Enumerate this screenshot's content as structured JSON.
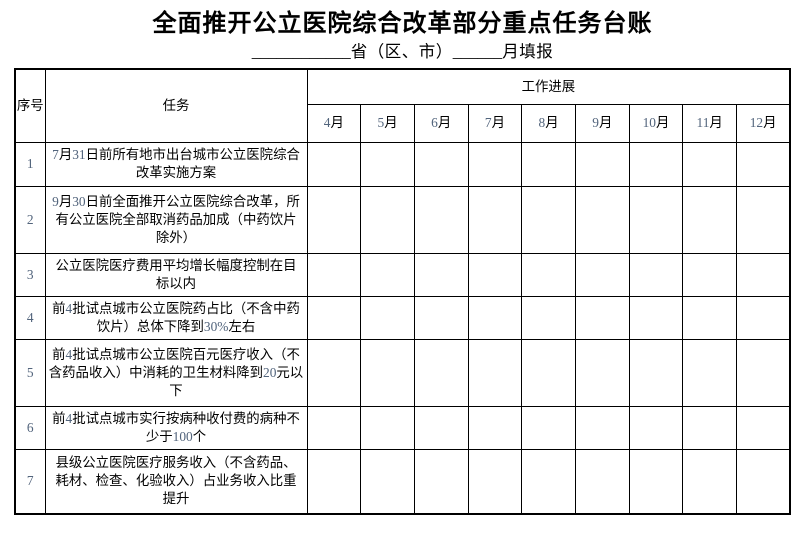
{
  "title": "全面推开公立医院综合改革部分重点任务台账",
  "subtitle": {
    "blank_province": "____________",
    "province_label": "省（区、市）",
    "blank_month": "______",
    "month_label": "月填报"
  },
  "table": {
    "headers": {
      "index": "序号",
      "task": "任务",
      "progress": "工作进展"
    },
    "months": [
      "4月",
      "5月",
      "6月",
      "7月",
      "8月",
      "9月",
      "10月",
      "11月",
      "12月"
    ],
    "rows": [
      {
        "index": "1",
        "task": "7月31日前所有地市出台城市公立医院综合\n改革实施方案"
      },
      {
        "index": "2",
        "task": "9月30日前全面推开公立医院综合改革，所\n有公立医院全部取消药品加成（中药饮片\n除外）"
      },
      {
        "index": "3",
        "task": "公立医院医疗费用平均增长幅度控制在目\n标以内"
      },
      {
        "index": "4",
        "task": "前4批试点城市公立医院药占比（不含中药\n饮片）总体下降到30%左右"
      },
      {
        "index": "5",
        "task": "前4批试点城市公立医院百元医疗收入（不\n含药品收入）中消耗的卫生材料降到20元以\n下"
      },
      {
        "index": "6",
        "task": "前4批试点城市实行按病种收付费的病种不\n少于100个"
      },
      {
        "index": "7",
        "task": "县级公立医院医疗服务收入（不含药品、\n耗材、检查、化验收入）占业务收入比重\n提升"
      }
    ]
  },
  "colors": {
    "page_bg": "#ffffff",
    "text": "#000000",
    "digit_text": "#52647c",
    "border": "#000000"
  }
}
